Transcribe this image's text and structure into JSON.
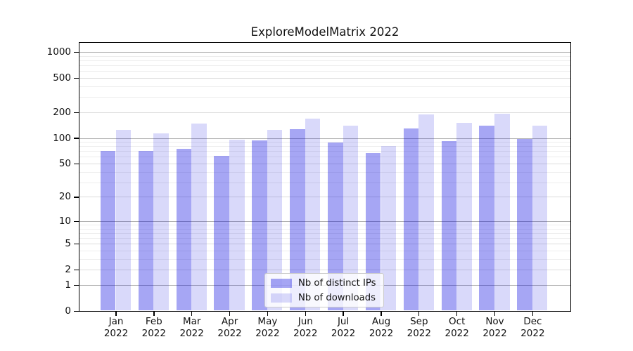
{
  "title": "ExploreModelMatrix 2022",
  "colors": {
    "bar_distinct_ips": "#a6a6f4",
    "bar_downloads": "#d9d9fa",
    "bar_distinct_ips_rgba": "rgba(0,0,224,0.35)",
    "bar_downloads_rgba": "rgba(0,0,224,0.15)",
    "grid_major": "#b0b0b0",
    "grid_mid": "#dcdcdc",
    "grid_minor": "#ededed",
    "axis": "#000000"
  },
  "chart_data": {
    "type": "bar",
    "title": "ExploreModelMatrix 2022",
    "categories": [
      "Jan",
      "Feb",
      "Mar",
      "Apr",
      "May",
      "Jun",
      "Jul",
      "Aug",
      "Sep",
      "Oct",
      "Nov",
      "Dec"
    ],
    "category_year": "2022",
    "series": [
      {
        "name": "Nb of distinct IPs",
        "color": "rgba(0,0,224,0.35)",
        "values": [
          70,
          70,
          75,
          62,
          94,
          127,
          88,
          66,
          130,
          92,
          138,
          97
        ]
      },
      {
        "name": "Nb of downloads",
        "color": "rgba(0,0,224,0.15)",
        "values": [
          125,
          113,
          148,
          95,
          125,
          167,
          138,
          81,
          188,
          151,
          191,
          138
        ]
      }
    ],
    "y_axis": {
      "scale": "log1p",
      "tick_values": [
        0,
        1,
        2,
        5,
        10,
        20,
        50,
        100,
        200,
        500,
        1000
      ],
      "tick_labels": [
        "0",
        "1",
        "2",
        "5",
        "10",
        "20",
        "50",
        "100",
        "200",
        "500",
        "1000"
      ],
      "major_grid_values": [
        1,
        10,
        100,
        1000
      ],
      "mid_grid_values": [
        2,
        5,
        20,
        50,
        200,
        500
      ],
      "minor_grid_values": [
        3,
        4,
        6,
        7,
        8,
        9,
        30,
        40,
        60,
        70,
        80,
        90,
        300,
        400,
        600,
        700,
        800,
        900
      ],
      "ylim": [
        0,
        1258
      ],
      "grid": true
    },
    "xlabel": "",
    "ylabel": "",
    "legend_position": "inside-bottom-center"
  }
}
